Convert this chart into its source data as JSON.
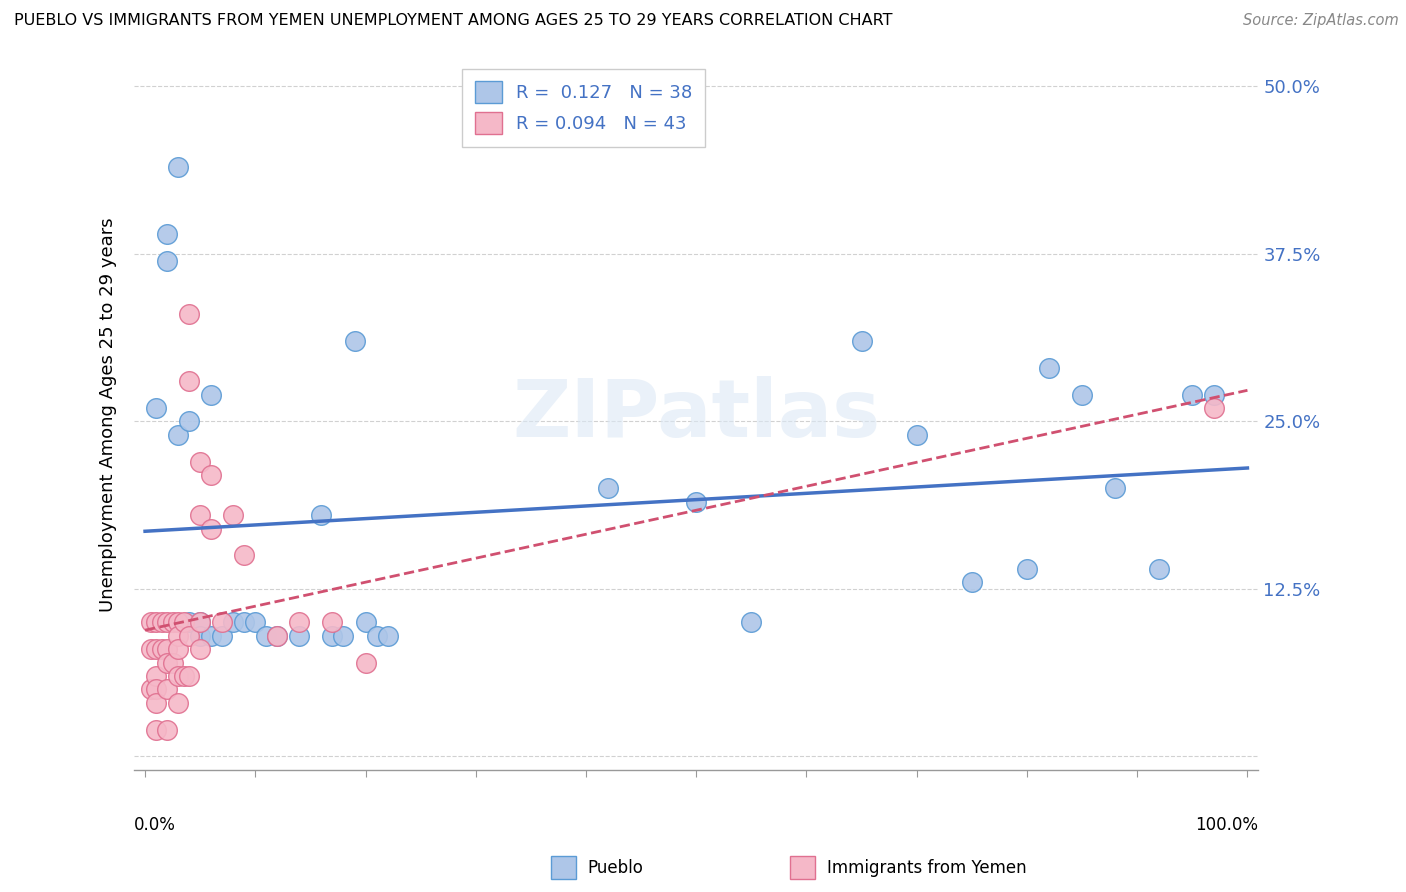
{
  "title": "PUEBLO VS IMMIGRANTS FROM YEMEN UNEMPLOYMENT AMONG AGES 25 TO 29 YEARS CORRELATION CHART",
  "source": "Source: ZipAtlas.com",
  "ylabel": "Unemployment Among Ages 25 to 29 years",
  "xlim": [
    -0.01,
    1.01
  ],
  "ylim": [
    -0.01,
    0.52
  ],
  "yticks": [
    0.0,
    0.125,
    0.25,
    0.375,
    0.5
  ],
  "ytick_labels": [
    "",
    "12.5%",
    "25.0%",
    "37.5%",
    "50.0%"
  ],
  "xticks": [
    0.0,
    0.1,
    0.2,
    0.3,
    0.4,
    0.5,
    0.6,
    0.7,
    0.8,
    0.9,
    1.0
  ],
  "xtick_labels": [
    "",
    "",
    "",
    "",
    "",
    "",
    "",
    "",
    "",
    "",
    ""
  ],
  "legend_labels": [
    "Pueblo",
    "Immigrants from Yemen"
  ],
  "R_pueblo": 0.127,
  "N_pueblo": 38,
  "R_yemen": 0.094,
  "N_yemen": 43,
  "pueblo_color": "#aec6e8",
  "pueblo_edge_color": "#5b9bd5",
  "pueblo_line_color": "#4472c4",
  "yemen_color": "#f5b8c8",
  "yemen_edge_color": "#e07090",
  "yemen_line_color": "#d05070",
  "background_color": "#ffffff",
  "pueblo_x": [
    0.01,
    0.02,
    0.02,
    0.03,
    0.03,
    0.04,
    0.04,
    0.05,
    0.05,
    0.06,
    0.06,
    0.07,
    0.08,
    0.09,
    0.1,
    0.11,
    0.12,
    0.14,
    0.16,
    0.17,
    0.18,
    0.19,
    0.2,
    0.21,
    0.22,
    0.42,
    0.5,
    0.55,
    0.65,
    0.7,
    0.75,
    0.8,
    0.82,
    0.85,
    0.88,
    0.92,
    0.95,
    0.97
  ],
  "pueblo_y": [
    0.26,
    0.39,
    0.37,
    0.44,
    0.24,
    0.25,
    0.1,
    0.1,
    0.09,
    0.09,
    0.27,
    0.09,
    0.1,
    0.1,
    0.1,
    0.09,
    0.09,
    0.09,
    0.18,
    0.09,
    0.09,
    0.31,
    0.1,
    0.09,
    0.09,
    0.2,
    0.19,
    0.1,
    0.31,
    0.24,
    0.13,
    0.14,
    0.29,
    0.27,
    0.2,
    0.14,
    0.27,
    0.27
  ],
  "yemen_x": [
    0.005,
    0.005,
    0.005,
    0.01,
    0.01,
    0.01,
    0.01,
    0.01,
    0.01,
    0.015,
    0.015,
    0.02,
    0.02,
    0.02,
    0.02,
    0.02,
    0.025,
    0.025,
    0.03,
    0.03,
    0.03,
    0.03,
    0.03,
    0.035,
    0.035,
    0.04,
    0.04,
    0.04,
    0.04,
    0.05,
    0.05,
    0.05,
    0.05,
    0.06,
    0.06,
    0.07,
    0.08,
    0.09,
    0.12,
    0.14,
    0.17,
    0.2,
    0.97
  ],
  "yemen_y": [
    0.1,
    0.08,
    0.05,
    0.1,
    0.08,
    0.06,
    0.05,
    0.04,
    0.02,
    0.1,
    0.08,
    0.1,
    0.08,
    0.07,
    0.05,
    0.02,
    0.1,
    0.07,
    0.1,
    0.09,
    0.08,
    0.06,
    0.04,
    0.1,
    0.06,
    0.33,
    0.28,
    0.09,
    0.06,
    0.22,
    0.18,
    0.1,
    0.08,
    0.21,
    0.17,
    0.1,
    0.18,
    0.15,
    0.09,
    0.1,
    0.1,
    0.07,
    0.26
  ]
}
